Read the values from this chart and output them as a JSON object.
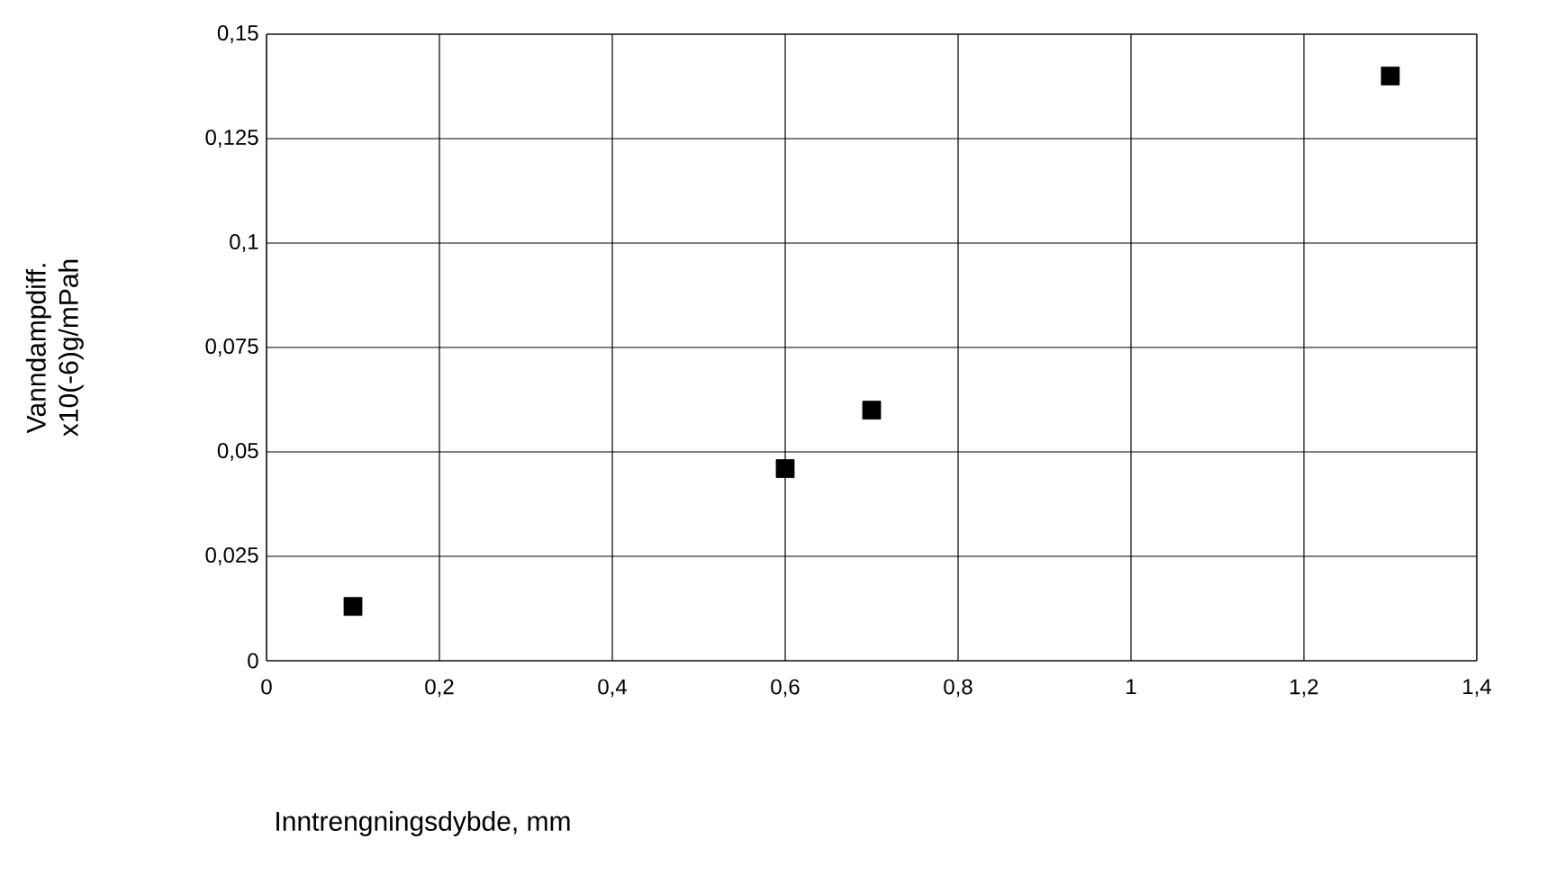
{
  "chart_data": {
    "type": "scatter",
    "xlabel": "Inntrengningsdybde, mm",
    "ylabel": "Vanndampdiff. x10(-6)g/mPah",
    "x": [
      0.1,
      0.6,
      0.7,
      1.3
    ],
    "series": [
      {
        "color": "#000000",
        "values": [
          0.013,
          0.046,
          0.06,
          0.14
        ]
      }
    ],
    "xlim": [
      0,
      1.4
    ],
    "ylim": [
      0,
      0.15
    ],
    "xticks": [
      {
        "value": 0,
        "label": "0"
      },
      {
        "value": 0.2,
        "label": "0,2"
      },
      {
        "value": 0.4,
        "label": "0,4"
      },
      {
        "value": 0.6,
        "label": "0,6"
      },
      {
        "value": 0.8,
        "label": "0,8"
      },
      {
        "value": 1,
        "label": "1"
      },
      {
        "value": 1.2,
        "label": "1,2"
      },
      {
        "value": 1.4,
        "label": "1,4"
      }
    ],
    "yticks": [
      {
        "value": 0,
        "label": "0"
      },
      {
        "value": 0.025,
        "label": "0,025"
      },
      {
        "value": 0.05,
        "label": "0,05"
      },
      {
        "value": 0.075,
        "label": "0,075"
      },
      {
        "value": 0.1,
        "label": "0,1"
      },
      {
        "value": 0.125,
        "label": "0,125"
      },
      {
        "value": 0.15,
        "label": "0,15"
      }
    ],
    "grid": true,
    "marker": "square"
  }
}
